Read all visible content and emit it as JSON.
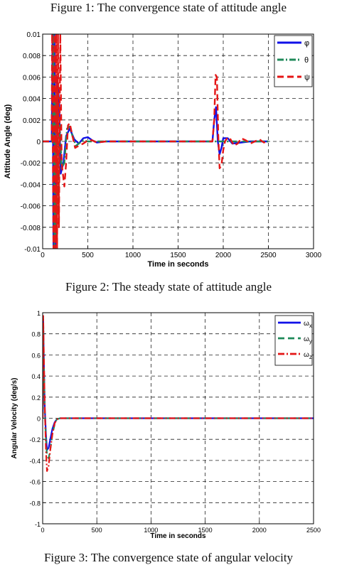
{
  "captions": {
    "top": "Figure 1: The convergence state of attitude angle",
    "middle": "Figure 2: The steady state of attitude angle",
    "bottom": "Figure 3: The convergence state of angular velocity"
  },
  "colors": {
    "blue": "#1010e8",
    "green": "#1f8a5a",
    "red": "#e41515"
  },
  "chart_data": [
    {
      "type": "line",
      "xlabel": "Time in seconds",
      "ylabel": "Attitude Angle (deg)",
      "xlim": [
        0,
        3000
      ],
      "ylim": [
        -0.01,
        0.01
      ],
      "xticks": [
        0,
        500,
        1000,
        1500,
        2000,
        2500,
        3000
      ],
      "xtick_labels": [
        "0",
        "500",
        "1000",
        "1500",
        "2000",
        "2500",
        "3000"
      ],
      "yticks": [
        -0.01,
        -0.008,
        -0.006,
        -0.004,
        -0.002,
        0,
        0.002,
        0.004,
        0.006,
        0.008,
        0.01
      ],
      "ytick_labels": [
        "-0.01",
        "-0.008",
        "-0.006",
        "-0.004",
        "-0.002",
        "0",
        "0.002",
        "0.004",
        "0.006",
        "0.008",
        "0.01"
      ],
      "grid": true,
      "legend_position": "top-right",
      "series": [
        {
          "name": "φ",
          "color": "#1010e8",
          "style": "solid",
          "x": [
            0,
            100,
            110,
            120,
            130,
            140,
            150,
            160,
            180,
            200,
            230,
            260,
            300,
            350,
            400,
            450,
            500,
            550,
            600,
            700,
            800,
            1000,
            1500,
            1880,
            1900,
            1920,
            1940,
            1960,
            1980,
            2000,
            2050,
            2100,
            2200,
            2300,
            2400,
            2500
          ],
          "y": [
            0,
            0,
            0.01,
            -0.01,
            0.01,
            -0.01,
            -0.007,
            0.006,
            0.004,
            -0.003,
            -0.002,
            0.0005,
            0.0012,
            0.0002,
            -0.0002,
            0.0003,
            0.0004,
            0.0001,
            -0.0001,
            0,
            0,
            0,
            0,
            0,
            0.002,
            0.0032,
            0,
            -0.0012,
            -0.0006,
            0.0003,
            0.0003,
            -0.0002,
            -0.0001,
            0,
            0,
            0
          ]
        },
        {
          "name": "θ",
          "color": "#1f8a5a",
          "style": "dashdot",
          "x": [
            0,
            110,
            120,
            130,
            140,
            150,
            160,
            175,
            190,
            210,
            240,
            270,
            300,
            330,
            370,
            400,
            450,
            500,
            600,
            800,
            1000,
            1500,
            2000,
            2500
          ],
          "y": [
            0,
            0,
            0.01,
            -0.01,
            0.004,
            -0.009,
            0.005,
            -0.0065,
            0.0015,
            -0.0025,
            -0.002,
            0.0012,
            0.0014,
            0.0005,
            -0.0004,
            -0.0002,
            0.0001,
            0,
            0,
            0,
            0,
            0,
            0,
            0
          ]
        },
        {
          "name": "ψ",
          "color": "#e41515",
          "style": "dashed",
          "x": [
            0,
            100,
            105,
            120,
            130,
            140,
            150,
            160,
            170,
            180,
            195,
            210,
            240,
            260,
            280,
            300,
            330,
            360,
            400,
            450,
            500,
            550,
            600,
            700,
            800,
            1000,
            1500,
            1880,
            1900,
            1915,
            1930,
            1945,
            1960,
            1980,
            2000,
            2020,
            2050,
            2080,
            2120,
            2160,
            2200,
            2250,
            2300,
            2350,
            2400,
            2450,
            2500
          ],
          "y": [
            0,
            0,
            0.01,
            -0.01,
            0.01,
            -0.01,
            0.01,
            -0.01,
            0.01,
            -0.008,
            0.01,
            -0.002,
            -0.0042,
            -0.002,
            0.0015,
            0.0017,
            0.0005,
            -0.0006,
            -0.0004,
            -0.0002,
            0.0001,
            0.0001,
            -0.0001,
            0,
            0,
            0,
            0,
            0,
            0.002,
            0.0062,
            0.006,
            0.0005,
            -0.0025,
            -0.0022,
            -0.0008,
            0,
            0.0004,
            0.0002,
            -0.0004,
            -0.0002,
            0.0003,
            0.0001,
            -0.0002,
            0,
            0.0002,
            -0.0001,
            0
          ]
        }
      ]
    },
    {
      "type": "line",
      "xlabel": "Time in seconds",
      "ylabel": "Angular Velocity (deg/s)",
      "xlim": [
        0,
        2500
      ],
      "ylim": [
        -1,
        1
      ],
      "xticks": [
        0,
        500,
        1000,
        1500,
        2000,
        2500
      ],
      "xtick_labels": [
        "0",
        "500",
        "1000",
        "1500",
        "2000",
        "2500"
      ],
      "yticks": [
        -1,
        -0.8,
        -0.6,
        -0.4,
        -0.2,
        0,
        0.2,
        0.4,
        0.6,
        0.8,
        1
      ],
      "ytick_labels": [
        "-1",
        "-0.8",
        "-0.6",
        "-0.4",
        "-0.2",
        "0",
        "0.2",
        "0.4",
        "0.6",
        "0.8",
        "1"
      ],
      "grid": true,
      "legend_position": "top-right",
      "series": [
        {
          "name": "ω",
          "subscript": "x",
          "color": "#1010e8",
          "style": "solid",
          "x": [
            0,
            5,
            12,
            20,
            30,
            40,
            55,
            70,
            90,
            110,
            130,
            160,
            200,
            300,
            500,
            1000,
            1500,
            2000,
            2500
          ],
          "y": [
            0,
            0.93,
            0.5,
            0.1,
            -0.15,
            -0.3,
            -0.28,
            -0.2,
            -0.1,
            -0.04,
            -0.01,
            0,
            0,
            0,
            0,
            0,
            0,
            0,
            0
          ]
        },
        {
          "name": "ω",
          "subscript": "y",
          "color": "#1f8a5a",
          "style": "dashed",
          "x": [
            0,
            5,
            12,
            20,
            30,
            40,
            55,
            70,
            90,
            110,
            130,
            160,
            200,
            300,
            500,
            1000,
            1500,
            2000,
            2500
          ],
          "y": [
            0,
            0.9,
            0.45,
            0.05,
            -0.2,
            -0.35,
            -0.38,
            -0.3,
            -0.15,
            -0.06,
            -0.01,
            0,
            0,
            0,
            0,
            0,
            0,
            0,
            0
          ]
        },
        {
          "name": "ω",
          "subscript": "z",
          "color": "#e41515",
          "style": "dashdot",
          "x": [
            0,
            5,
            12,
            20,
            30,
            40,
            55,
            70,
            90,
            110,
            130,
            160,
            200,
            300,
            500,
            1000,
            1500,
            2000,
            2500
          ],
          "y": [
            0,
            0.97,
            0.55,
            0.1,
            -0.3,
            -0.5,
            -0.45,
            -0.3,
            -0.15,
            -0.05,
            -0.01,
            0,
            0,
            0,
            0,
            0,
            0,
            0,
            0
          ]
        }
      ]
    }
  ]
}
